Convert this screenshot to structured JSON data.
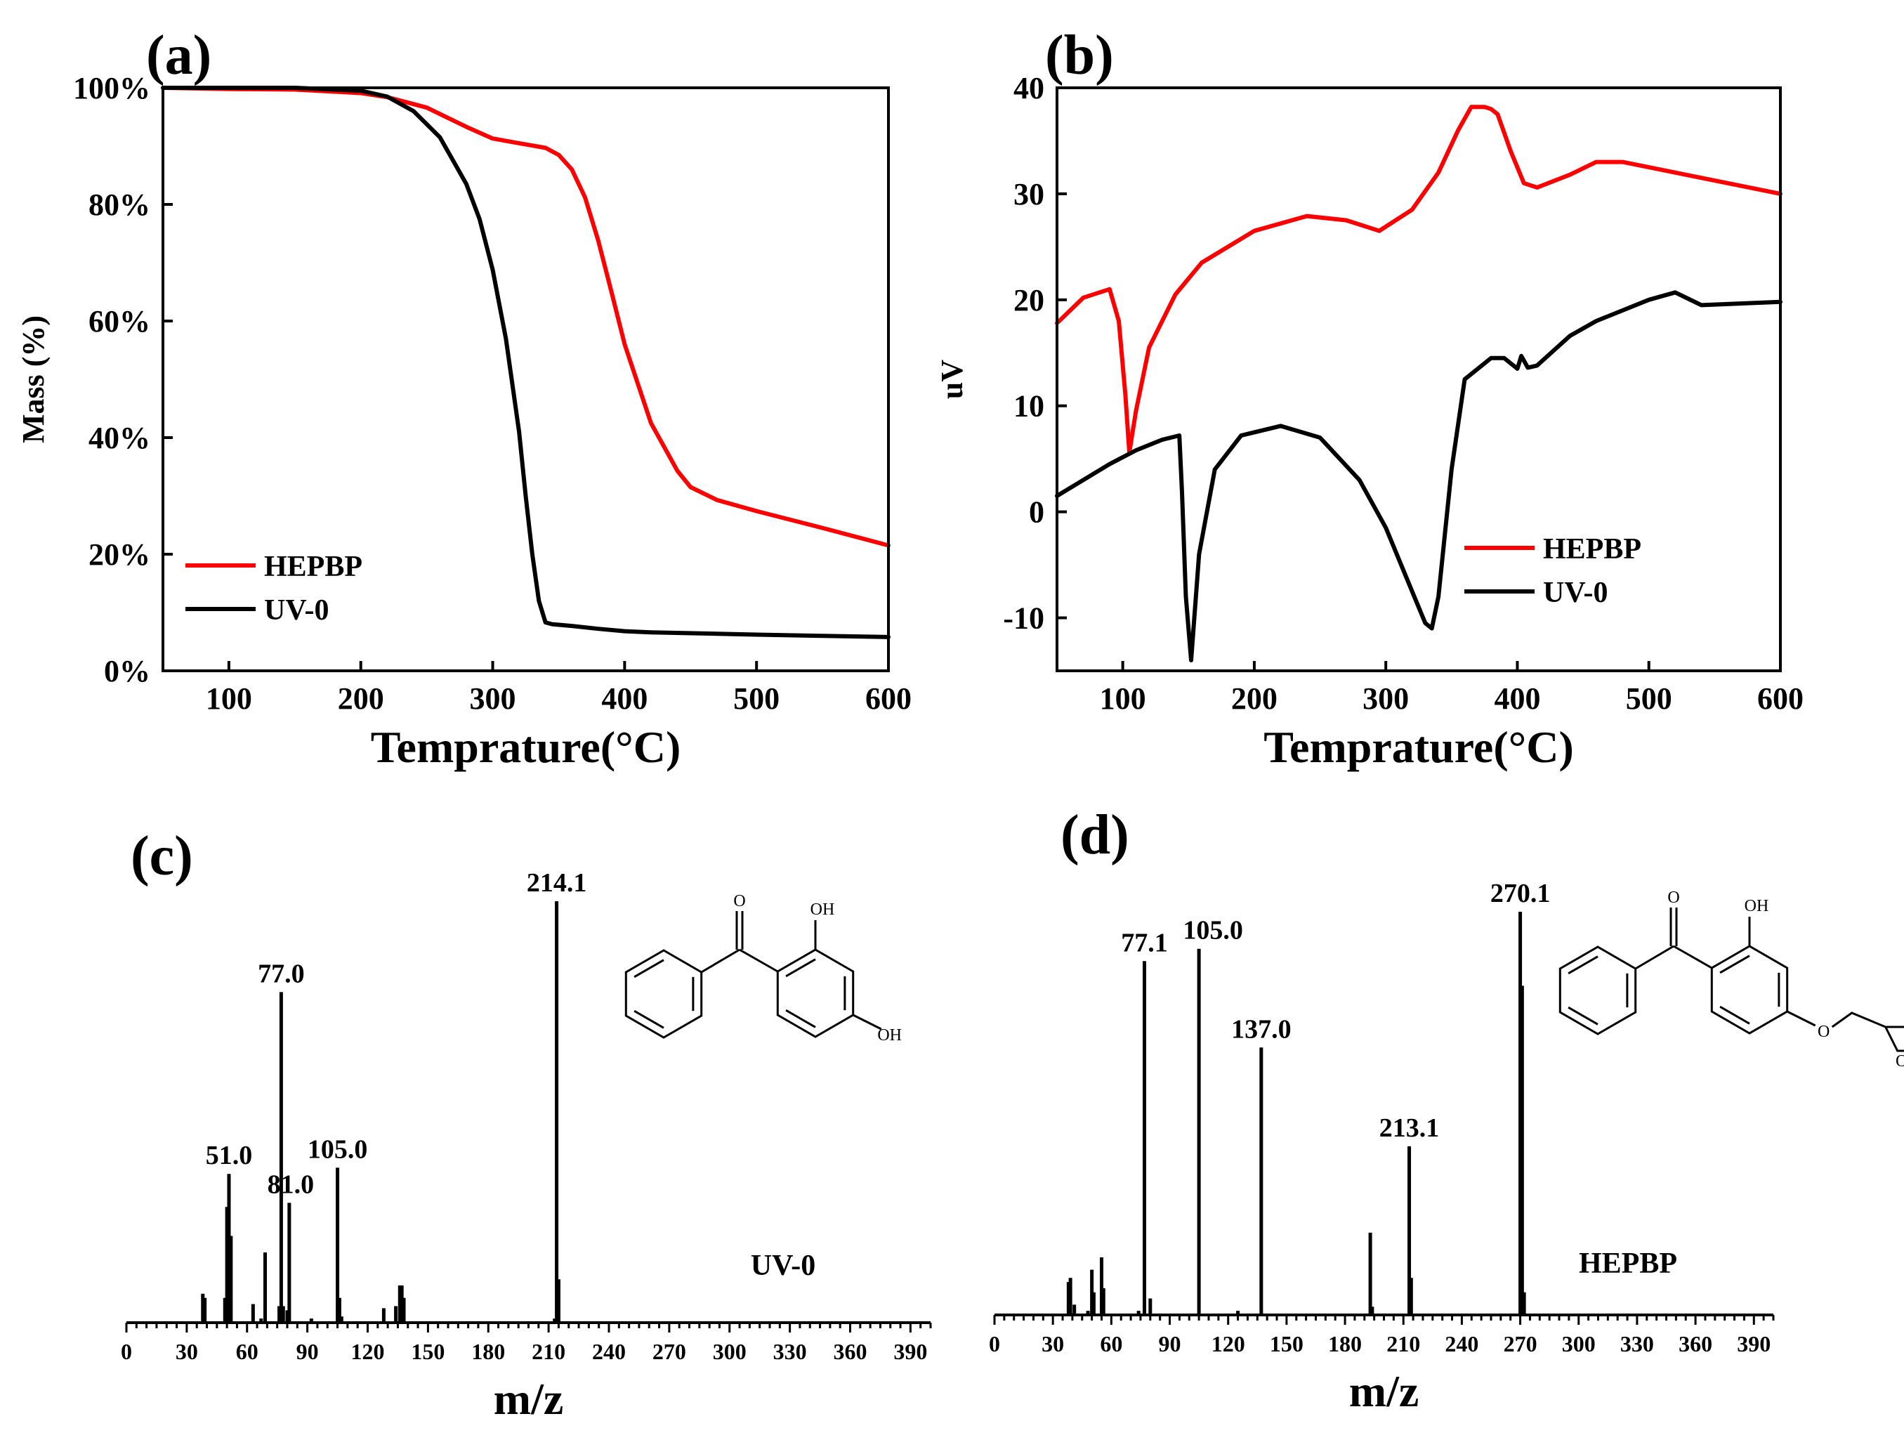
{
  "chart_data": [
    {
      "id": "a",
      "panel_label": "(a)",
      "type": "line",
      "xlabel": "Temprature(°C)",
      "ylabel": "Mass (%)",
      "xlim": [
        50,
        600
      ],
      "ylim": [
        0,
        100
      ],
      "xticks": [
        100,
        200,
        300,
        400,
        500,
        600
      ],
      "yticks": [
        0,
        20,
        40,
        60,
        80,
        100
      ],
      "ytick_labels": [
        "0%",
        "20%",
        "40%",
        "60%",
        "80%",
        "100%"
      ],
      "legend": [
        {
          "name": "HEPBP",
          "color": "#ff0000"
        },
        {
          "name": "UV-0",
          "color": "#000000"
        }
      ],
      "legend_position": "bottom-left",
      "series": [
        {
          "name": "HEPBP",
          "color": "#ff0000",
          "x": [
            50,
            100,
            150,
            200,
            220,
            250,
            280,
            300,
            320,
            340,
            350,
            360,
            370,
            380,
            390,
            400,
            420,
            440,
            450,
            470,
            500,
            550,
            600
          ],
          "y": [
            100,
            99.8,
            99.7,
            99.1,
            98.4,
            96.6,
            93.3,
            91.3,
            90.5,
            89.7,
            88.5,
            86,
            81.2,
            73.8,
            65,
            56,
            42.5,
            34.3,
            31.5,
            29.3,
            27.4,
            24.5,
            21.5
          ]
        },
        {
          "name": "UV-0",
          "color": "#000000",
          "x": [
            50,
            100,
            150,
            200,
            220,
            240,
            260,
            280,
            290,
            300,
            310,
            320,
            325,
            330,
            335,
            340,
            345,
            360,
            380,
            400,
            420,
            500,
            600
          ],
          "y": [
            100,
            100,
            100,
            99.5,
            98.5,
            96,
            91.5,
            83.5,
            77.5,
            68.8,
            57,
            41,
            30,
            20,
            12,
            8.3,
            8,
            7.7,
            7.2,
            6.8,
            6.6,
            6.2,
            5.8
          ]
        }
      ]
    },
    {
      "id": "b",
      "panel_label": "(b)",
      "type": "line",
      "xlabel": "Temprature(°C)",
      "ylabel": "uV",
      "xlim": [
        50,
        600
      ],
      "ylim": [
        -15,
        40
      ],
      "xticks": [
        100,
        200,
        300,
        400,
        500,
        600
      ],
      "yticks": [
        -10,
        0,
        10,
        20,
        30,
        40
      ],
      "ytick_labels": [
        "-10",
        "0",
        "10",
        "20",
        "30",
        "40"
      ],
      "legend": [
        {
          "name": "HEPBP",
          "color": "#ff0000"
        },
        {
          "name": "UV-0",
          "color": "#000000"
        }
      ],
      "legend_position": "bottom-right",
      "series": [
        {
          "name": "HEPBP",
          "color": "#ff0000",
          "x": [
            50,
            70,
            90,
            97,
            102,
            105,
            110,
            120,
            140,
            160,
            200,
            240,
            270,
            295,
            320,
            340,
            355,
            365,
            375,
            380,
            385,
            395,
            405,
            415,
            440,
            460,
            480,
            520,
            560,
            600
          ],
          "y": [
            17.8,
            20.2,
            21,
            18,
            11,
            5.6,
            9.5,
            15.5,
            20.5,
            23.5,
            26.5,
            27.9,
            27.5,
            26.5,
            28.5,
            32,
            36,
            38.2,
            38.2,
            38,
            37.5,
            34,
            31,
            30.6,
            31.8,
            33,
            33,
            32,
            31,
            30
          ]
        },
        {
          "name": "UV-0",
          "color": "#000000",
          "x": [
            50,
            90,
            110,
            130,
            143,
            145,
            148,
            152,
            158,
            170,
            190,
            220,
            250,
            280,
            300,
            320,
            330,
            335,
            340,
            350,
            360,
            380,
            390,
            400,
            403,
            408,
            415,
            440,
            460,
            500,
            520,
            540,
            600
          ],
          "y": [
            1.5,
            4.5,
            5.8,
            6.8,
            7.2,
            2,
            -8,
            -14,
            -4,
            4,
            7.2,
            8.1,
            7,
            3,
            -1.5,
            -7.5,
            -10.5,
            -11,
            -8,
            4,
            12.5,
            14.5,
            14.5,
            13.5,
            14.7,
            13.6,
            13.8,
            16.6,
            18,
            20,
            20.7,
            19.5,
            19.8
          ]
        }
      ]
    },
    {
      "id": "c",
      "panel_label": "(c)",
      "type": "bar",
      "xlabel": "m/z",
      "xlim": [
        0,
        400
      ],
      "xticks": [
        0,
        30,
        60,
        90,
        120,
        150,
        180,
        210,
        240,
        270,
        300,
        330,
        360,
        390
      ],
      "sample_label": "UV-0",
      "structure_name": "2,4-dihydroxybenzophenone",
      "structure_atoms": [
        "O",
        "OH",
        "OH"
      ],
      "peaks": [
        {
          "mz": 38,
          "intensity": 7,
          "label": ""
        },
        {
          "mz": 39,
          "intensity": 6,
          "label": ""
        },
        {
          "mz": 49,
          "intensity": 6,
          "label": ""
        },
        {
          "mz": 50,
          "intensity": 28,
          "label": ""
        },
        {
          "mz": 51,
          "intensity": 36,
          "label": "51.0"
        },
        {
          "mz": 52,
          "intensity": 21,
          "label": ""
        },
        {
          "mz": 63,
          "intensity": 4.5,
          "label": ""
        },
        {
          "mz": 67,
          "intensity": 1,
          "label": ""
        },
        {
          "mz": 69,
          "intensity": 17,
          "label": ""
        },
        {
          "mz": 76,
          "intensity": 4,
          "label": ""
        },
        {
          "mz": 77,
          "intensity": 80,
          "label": "77.0"
        },
        {
          "mz": 78,
          "intensity": 4,
          "label": ""
        },
        {
          "mz": 80,
          "intensity": 3,
          "label": ""
        },
        {
          "mz": 81,
          "intensity": 29,
          "label": "81.0"
        },
        {
          "mz": 92,
          "intensity": 1,
          "label": ""
        },
        {
          "mz": 105,
          "intensity": 37.5,
          "label": "105.0"
        },
        {
          "mz": 106,
          "intensity": 6,
          "label": ""
        },
        {
          "mz": 107,
          "intensity": 1.5,
          "label": ""
        },
        {
          "mz": 128,
          "intensity": 3.5,
          "label": ""
        },
        {
          "mz": 134,
          "intensity": 4,
          "label": ""
        },
        {
          "mz": 136,
          "intensity": 9,
          "label": ""
        },
        {
          "mz": 137,
          "intensity": 9,
          "label": ""
        },
        {
          "mz": 138,
          "intensity": 6,
          "label": ""
        },
        {
          "mz": 213,
          "intensity": 1,
          "label": ""
        },
        {
          "mz": 214,
          "intensity": 102,
          "label": "214.1"
        },
        {
          "mz": 215,
          "intensity": 10.5,
          "label": ""
        }
      ]
    },
    {
      "id": "d",
      "panel_label": "(d)",
      "type": "bar",
      "xlabel": "m/z",
      "xlim": [
        0,
        400
      ],
      "xticks": [
        0,
        30,
        60,
        90,
        120,
        150,
        180,
        210,
        240,
        270,
        300,
        330,
        360,
        390
      ],
      "sample_label": "HEPBP",
      "structure_name": "HEPBP (glycidyl ether of 2,4-dihydroxybenzophenone)",
      "structure_atoms": [
        "O",
        "OH",
        "O",
        "O"
      ],
      "peaks": [
        {
          "mz": 38,
          "intensity": 8,
          "label": ""
        },
        {
          "mz": 39,
          "intensity": 9,
          "label": ""
        },
        {
          "mz": 41,
          "intensity": 2.5,
          "label": ""
        },
        {
          "mz": 48,
          "intensity": 1,
          "label": ""
        },
        {
          "mz": 50,
          "intensity": 11,
          "label": ""
        },
        {
          "mz": 51,
          "intensity": 5.5,
          "label": ""
        },
        {
          "mz": 55,
          "intensity": 14,
          "label": ""
        },
        {
          "mz": 56,
          "intensity": 6.5,
          "label": ""
        },
        {
          "mz": 74,
          "intensity": 1,
          "label": ""
        },
        {
          "mz": 77,
          "intensity": 86,
          "label": "77.1"
        },
        {
          "mz": 80,
          "intensity": 4,
          "label": ""
        },
        {
          "mz": 105,
          "intensity": 89,
          "label": "105.0"
        },
        {
          "mz": 125,
          "intensity": 1,
          "label": ""
        },
        {
          "mz": 137,
          "intensity": 65,
          "label": "137.0"
        },
        {
          "mz": 193,
          "intensity": 20,
          "label": ""
        },
        {
          "mz": 194,
          "intensity": 2,
          "label": ""
        },
        {
          "mz": 213,
          "intensity": 41,
          "label": "213.1"
        },
        {
          "mz": 214,
          "intensity": 9,
          "label": ""
        },
        {
          "mz": 270,
          "intensity": 98,
          "label": "270.1"
        },
        {
          "mz": 271,
          "intensity": 80,
          "label": ""
        },
        {
          "mz": 272,
          "intensity": 5.5,
          "label": ""
        }
      ]
    }
  ]
}
